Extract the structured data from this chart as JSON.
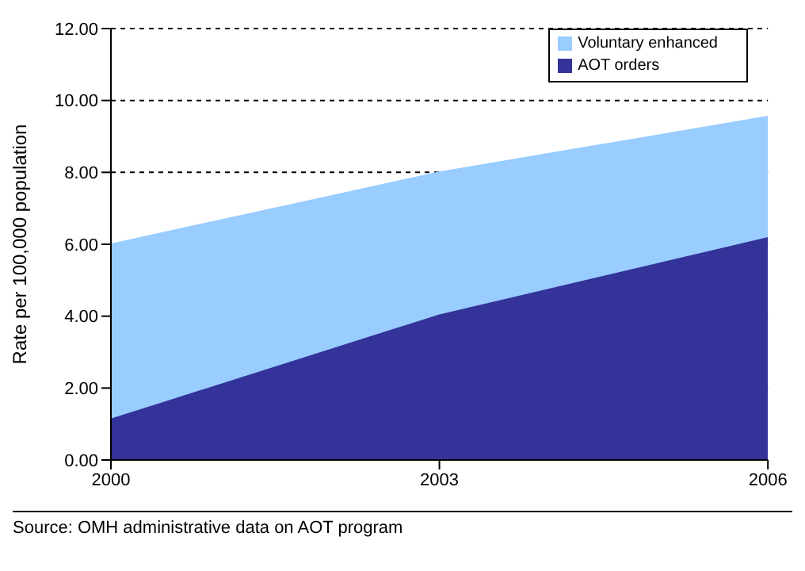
{
  "chart_data": {
    "type": "area",
    "stacked": true,
    "ylabel": "Rate per 100,000 population",
    "x": [
      2000,
      2003,
      2006
    ],
    "xlim": [
      2000,
      2006
    ],
    "xticks": [
      2000,
      2003,
      2006
    ],
    "ylim": [
      0,
      12
    ],
    "yticks": [
      {
        "value": 0,
        "label": "0.00"
      },
      {
        "value": 2,
        "label": "2.00"
      },
      {
        "value": 4,
        "label": "4.00"
      },
      {
        "value": 6,
        "label": "6.00"
      },
      {
        "value": 8,
        "label": "8.00"
      },
      {
        "value": 10,
        "label": "10.00"
      },
      {
        "value": 12,
        "label": "12.00"
      }
    ],
    "series": [
      {
        "name": "AOT orders",
        "color": "#333399",
        "values": [
          1.15,
          4.05,
          6.2
        ]
      },
      {
        "name": "Voluntary enhanced",
        "color": "#99ccff",
        "values": [
          4.85,
          3.95,
          3.35
        ]
      }
    ],
    "grid": "y",
    "line_style": "dashed",
    "legend": "top right",
    "annotations": [
      "Source: OMH administrative data on AOT program"
    ]
  }
}
